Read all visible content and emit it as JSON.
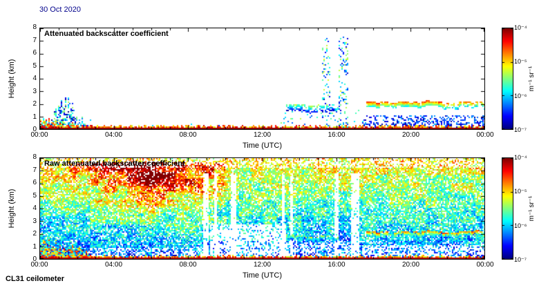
{
  "page": {
    "date_label": "30 Oct 2020",
    "instrument_label": "CL31 ceilometer"
  },
  "colorbar": {
    "tick_labels": [
      "10⁻⁴",
      "10⁻⁵",
      "10⁻⁶",
      "10⁻⁷"
    ],
    "unit_label": "m⁻¹ sr⁻¹",
    "colormap": "jet",
    "scale": "log"
  },
  "panels": [
    {
      "title": "Attenuated backscatter coefficient",
      "xlabel": "Time (UTC)",
      "ylabel": "Height (km)",
      "x_ticks": [
        "00:00",
        "04:00",
        "08:00",
        "12:00",
        "16:00",
        "20:00",
        "00:00"
      ],
      "y_ticks": [
        "0",
        "1",
        "2",
        "3",
        "4",
        "5",
        "6",
        "7",
        "8"
      ]
    },
    {
      "title": "Raw attenuated backscatter coefficient",
      "xlabel": "Time (UTC)",
      "ylabel": "Height (km)",
      "x_ticks": [
        "00:00",
        "04:00",
        "08:00",
        "12:00",
        "16:00",
        "20:00",
        "00:00"
      ],
      "y_ticks": [
        "0",
        "1",
        "2",
        "3",
        "4",
        "5",
        "6",
        "7",
        "8"
      ]
    }
  ],
  "chart_data": [
    {
      "type": "heatmap",
      "title": "Attenuated backscatter coefficient",
      "date": "30 Oct 2020",
      "instrument": "CL31 ceilometer",
      "xlabel": "Time (UTC)",
      "ylabel": "Height (km)",
      "x_range_hours": [
        0,
        24
      ],
      "x_tick_hours": [
        0,
        4,
        8,
        12,
        16,
        20,
        24
      ],
      "y_range_km": [
        0,
        8
      ],
      "y_tick_km": [
        0,
        1,
        2,
        3,
        4,
        5,
        6,
        7,
        8
      ],
      "value_scale": "log10",
      "value_min": 1e-07,
      "value_max": 0.0001,
      "value_units": "m⁻¹ sr⁻¹",
      "colormap": "jet",
      "background": "white",
      "features": [
        {
          "kind": "surface_layer",
          "t": [
            0,
            24
          ],
          "h_km": [
            0,
            0.25
          ],
          "peak_log10": -4.2,
          "description": "strong continuous near-surface aerosol return, red/orange"
        },
        {
          "kind": "dense_mixed_layer",
          "t": [
            0,
            2.1
          ],
          "h_km": [
            0,
            0.7
          ],
          "log10": -5.2,
          "coverage": 0.8,
          "description": "dense multicoloured low-level echoes just after midnight"
        },
        {
          "kind": "aerosol_plume",
          "t": [
            0.4,
            2.5
          ],
          "h_top_km": 2.0,
          "peak_log10": -5.3,
          "description": "plume of green/blue echoes rising to ~2 km near 01:00-02:00"
        },
        {
          "kind": "scattered_specks",
          "t": [
            2.5,
            13.5
          ],
          "h_km": [
            0,
            0.8
          ],
          "density": 0.012,
          "log10": -6.2,
          "description": "sparse weak specks at low levels through daytime"
        },
        {
          "kind": "cloud_layer",
          "t": [
            13.3,
            16.3
          ],
          "h_km": [
            1.35,
            1.9
          ],
          "peak_log10": -5.2,
          "coverage": 0.5,
          "description": "broken green cloud layer near 1.5-2 km"
        },
        {
          "kind": "scattered_specks",
          "t": [
            13.0,
            17.5
          ],
          "h_km": [
            0,
            1.5
          ],
          "density": 0.045,
          "log10": -5.9,
          "description": "scattered echoes below the afternoon cloud"
        },
        {
          "kind": "precip_virga_column",
          "t": [
            15.25,
            15.7
          ],
          "h_km": [
            0,
            7.3
          ],
          "density": 0.2,
          "log10": -6.0,
          "description": "narrow column of weak echoes up to ~7 km near 15:30"
        },
        {
          "kind": "precip_virga_column",
          "t": [
            16.15,
            16.65
          ],
          "h_km": [
            0,
            7.3
          ],
          "density": 0.2,
          "log10": -6.0,
          "description": "narrow column of weak echoes up to ~7 km near 16:30"
        },
        {
          "kind": "cloud_layer",
          "t": [
            17.6,
            21.7
          ],
          "h_km": [
            1.75,
            2.15
          ],
          "peak_log10": -4.3,
          "coverage": 0.93,
          "description": "persistent cloud base near 2 km, red-topped, evening"
        },
        {
          "kind": "cloud_layer",
          "t": [
            21.7,
            24
          ],
          "h_km": [
            1.65,
            2.1
          ],
          "peak_log10": -4.5,
          "coverage": 0.55,
          "description": "broken cloud base near 2 km, late evening"
        },
        {
          "kind": "aerosol_layer",
          "t": [
            17.4,
            24
          ],
          "h_km": [
            0,
            1.05
          ],
          "log10": -6.1,
          "coverage": 0.38,
          "description": "sub-cloud blue aerosol/drizzle specks below 1 km"
        }
      ]
    },
    {
      "type": "heatmap",
      "title": "Raw attenuated backscatter coefficient",
      "date": "30 Oct 2020",
      "instrument": "CL31 ceilometer",
      "xlabel": "Time (UTC)",
      "ylabel": "Height (km)",
      "x_range_hours": [
        0,
        24
      ],
      "x_tick_hours": [
        0,
        4,
        8,
        12,
        16,
        20,
        24
      ],
      "y_range_km": [
        0,
        8
      ],
      "y_tick_km": [
        0,
        1,
        2,
        3,
        4,
        5,
        6,
        7,
        8
      ],
      "value_scale": "log10",
      "value_min": 1e-07,
      "value_max": 0.0001,
      "value_units": "m⁻¹ sr⁻¹",
      "colormap": "jet",
      "background": "noise-filled",
      "features": [
        {
          "kind": "noise_background",
          "coverage": 0.8,
          "log10_base": -7.0,
          "height_gain": 1.3,
          "description": "range-dependent speckle noise filling the whole panel, blue low / green-yellow aloft"
        },
        {
          "kind": "noise_enhancement",
          "t": [
            0,
            10
          ],
          "h_km": [
            1,
            7.7
          ],
          "extra_log10": 1.7,
          "center_t": 6.0,
          "description": "enhanced orange/red noise aloft between 00:00 and 09:00"
        },
        {
          "kind": "signal_gap_columns",
          "t": [
            8.8,
            17.3
          ],
          "h_km": [
            0,
            6.8
          ],
          "gap_fraction": 0.38,
          "description": "white low-signal vertical streaks, late morning to afternoon"
        },
        {
          "kind": "signal_gap_region",
          "t": [
            9.2,
            13.3
          ],
          "h_km": [
            0,
            2.7
          ],
          "gap_fraction": 0.72,
          "description": "large white gap at low levels 09:00-13:00"
        },
        {
          "kind": "signal_gap_region",
          "t": [
            13.3,
            17.3
          ],
          "h_km": [
            0,
            1.3
          ],
          "gap_fraction": 0.5,
          "description": "partial gap below afternoon cloud"
        },
        {
          "kind": "signal_gap_region",
          "t": [
            2.6,
            9.2
          ],
          "h_km": [
            0,
            0.9
          ],
          "gap_fraction": 0.45,
          "description": "patchy white areas below 1 km in the morning"
        },
        {
          "kind": "signal_gap_region",
          "t": [
            17.4,
            24
          ],
          "h_km": [
            0,
            1.15
          ],
          "gap_fraction": 0.55,
          "description": "whitish sub-cloud region in the evening"
        },
        {
          "kind": "surface_layer",
          "t": [
            0,
            24
          ],
          "h_km": [
            0,
            0.22
          ],
          "peak_log10": -4.3,
          "description": "strong red surface return line"
        },
        {
          "kind": "dense_mixed_layer",
          "t": [
            0,
            2.6
          ],
          "h_km": [
            0,
            1.3
          ],
          "log10": -5.4,
          "coverage": 0.85,
          "description": "dense colourful low-level echoes after midnight"
        },
        {
          "kind": "cloud_layer",
          "t": [
            13.3,
            16.3
          ],
          "h_km": [
            1.4,
            1.8
          ],
          "peak_log10": -5.1,
          "coverage": 0.5,
          "description": "green broken cloud line near 1.5 km"
        },
        {
          "kind": "cloud_layer",
          "t": [
            17.6,
            24
          ],
          "h_km": [
            1.8,
            2.15
          ],
          "peak_log10": -4.4,
          "coverage": 0.75,
          "description": "red/orange cloud-base line near 2 km, evening"
        },
        {
          "kind": "cloud_layer",
          "t": [
            20.9,
            24
          ],
          "h_km": [
            1.45,
            1.7
          ],
          "peak_log10": -5.2,
          "coverage": 0.35,
          "description": "secondary broken layer below the evening cloud"
        }
      ]
    }
  ]
}
